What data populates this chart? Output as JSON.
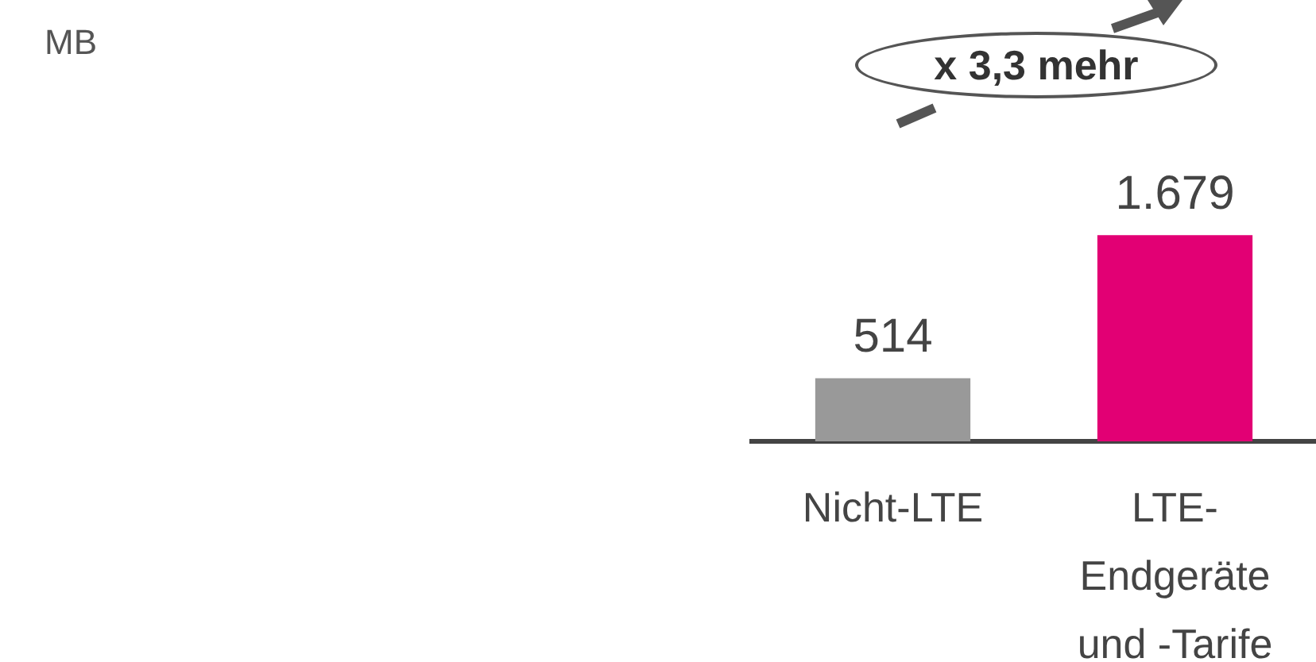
{
  "chart_data": {
    "type": "bar",
    "categories": [
      "Nicht-LTE",
      "LTE- Endgeräte und -Tarife"
    ],
    "values": [
      514,
      1679
    ],
    "colors": [
      "#999999",
      "#e20074"
    ],
    "data_labels": true,
    "value_labels": [
      "514",
      "1.679"
    ],
    "annotations": [
      "MB",
      "x 3,3 mehr"
    ],
    "tick_labels": "x",
    "grid": false,
    "legend": false
  }
}
